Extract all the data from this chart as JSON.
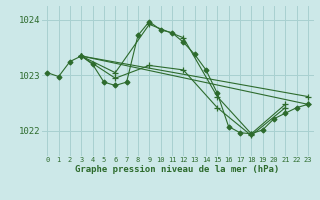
{
  "title": "Graphe pression niveau de la mer (hPa)",
  "background_color": "#cce8e8",
  "grid_color": "#a8d0d0",
  "line_color": "#2d6b2d",
  "xlim": [
    -0.5,
    23.5
  ],
  "ylim": [
    1021.55,
    1024.25
  ],
  "yticks": [
    1022,
    1023,
    1024
  ],
  "xticks": [
    0,
    1,
    2,
    3,
    4,
    5,
    6,
    7,
    8,
    9,
    10,
    11,
    12,
    13,
    14,
    15,
    16,
    17,
    18,
    19,
    20,
    21,
    22,
    23
  ],
  "lines": [
    {
      "x": [
        0,
        1,
        2,
        3,
        4,
        5,
        6,
        7,
        8,
        9,
        10,
        11,
        12,
        13,
        14,
        15,
        16,
        17,
        18,
        19,
        20,
        21,
        22,
        23
      ],
      "y": [
        1023.05,
        1022.98,
        1023.25,
        1023.35,
        1023.2,
        1022.88,
        1022.82,
        1022.88,
        1023.72,
        1023.97,
        1023.82,
        1023.77,
        1023.6,
        1023.38,
        1023.1,
        1022.68,
        1022.08,
        1021.97,
        1021.95,
        1022.02,
        1022.22,
        1022.32,
        1022.42,
        1022.48
      ],
      "marker": "D",
      "markersize": 2.5
    },
    {
      "x": [
        3,
        6,
        9,
        12,
        15,
        18,
        21
      ],
      "y": [
        1023.35,
        1023.05,
        1023.92,
        1023.68,
        1022.62,
        1021.95,
        1022.48
      ],
      "marker": "+",
      "markersize": 5
    },
    {
      "x": [
        3,
        6,
        9,
        12,
        15,
        18,
        21
      ],
      "y": [
        1023.35,
        1022.95,
        1023.18,
        1023.1,
        1022.42,
        1021.92,
        1022.42
      ],
      "marker": "+",
      "markersize": 5
    },
    {
      "x": [
        3,
        23
      ],
      "y": [
        1023.35,
        1022.62
      ],
      "marker": "+",
      "markersize": 5
    },
    {
      "x": [
        3,
        23
      ],
      "y": [
        1023.35,
        1022.48
      ],
      "marker": "+",
      "markersize": 5
    }
  ]
}
